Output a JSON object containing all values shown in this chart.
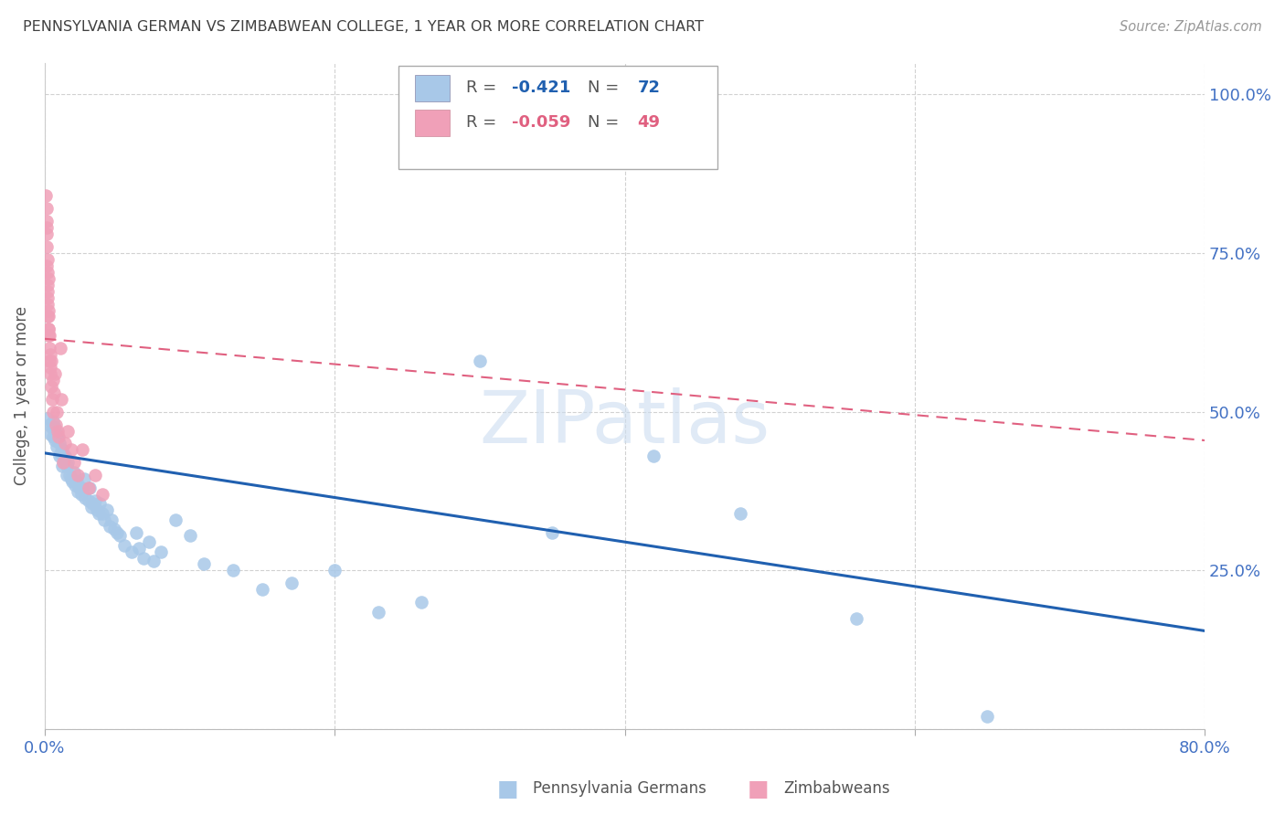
{
  "title": "PENNSYLVANIA GERMAN VS ZIMBABWEAN COLLEGE, 1 YEAR OR MORE CORRELATION CHART",
  "source": "Source: ZipAtlas.com",
  "ylabel": "College, 1 year or more",
  "watermark": "ZIPatlas",
  "legend_blue_r_val": "-0.421",
  "legend_blue_n_val": "72",
  "legend_pink_r_val": "-0.059",
  "legend_pink_n_val": "49",
  "legend_blue_label": "Pennsylvania Germans",
  "legend_pink_label": "Zimbabweans",
  "blue_color": "#a8c8e8",
  "blue_line_color": "#2060b0",
  "pink_color": "#f0a0b8",
  "pink_line_color": "#e06080",
  "axis_label_color": "#4472c4",
  "title_color": "#404040",
  "grid_color": "#cccccc",
  "background_color": "#ffffff",
  "blue_scatter_x": [
    0.002,
    0.003,
    0.004,
    0.005,
    0.006,
    0.006,
    0.007,
    0.007,
    0.008,
    0.008,
    0.009,
    0.01,
    0.01,
    0.011,
    0.012,
    0.012,
    0.013,
    0.014,
    0.015,
    0.015,
    0.016,
    0.017,
    0.018,
    0.019,
    0.02,
    0.021,
    0.022,
    0.023,
    0.024,
    0.025,
    0.026,
    0.027,
    0.028,
    0.03,
    0.031,
    0.032,
    0.033,
    0.035,
    0.036,
    0.037,
    0.038,
    0.04,
    0.041,
    0.043,
    0.045,
    0.046,
    0.048,
    0.05,
    0.052,
    0.055,
    0.06,
    0.063,
    0.065,
    0.068,
    0.072,
    0.075,
    0.08,
    0.09,
    0.1,
    0.11,
    0.13,
    0.15,
    0.17,
    0.2,
    0.23,
    0.26,
    0.3,
    0.35,
    0.42,
    0.48,
    0.56,
    0.65
  ],
  "blue_scatter_y": [
    0.49,
    0.48,
    0.465,
    0.475,
    0.46,
    0.485,
    0.455,
    0.475,
    0.445,
    0.465,
    0.46,
    0.43,
    0.45,
    0.435,
    0.415,
    0.44,
    0.425,
    0.43,
    0.4,
    0.415,
    0.42,
    0.4,
    0.395,
    0.39,
    0.405,
    0.385,
    0.39,
    0.375,
    0.38,
    0.37,
    0.38,
    0.395,
    0.365,
    0.36,
    0.38,
    0.35,
    0.355,
    0.36,
    0.345,
    0.34,
    0.355,
    0.34,
    0.33,
    0.345,
    0.32,
    0.33,
    0.315,
    0.31,
    0.305,
    0.29,
    0.28,
    0.31,
    0.285,
    0.27,
    0.295,
    0.265,
    0.28,
    0.33,
    0.305,
    0.26,
    0.25,
    0.22,
    0.23,
    0.25,
    0.185,
    0.2,
    0.58,
    0.31,
    0.43,
    0.34,
    0.175,
    0.02
  ],
  "pink_scatter_x": [
    0.0008,
    0.001,
    0.0011,
    0.0012,
    0.0013,
    0.0014,
    0.0015,
    0.0016,
    0.0017,
    0.0018,
    0.0019,
    0.002,
    0.0021,
    0.0022,
    0.0023,
    0.0024,
    0.0025,
    0.0026,
    0.0027,
    0.0028,
    0.003,
    0.0032,
    0.0034,
    0.0036,
    0.0038,
    0.004,
    0.0043,
    0.0046,
    0.005,
    0.0054,
    0.0058,
    0.0062,
    0.0068,
    0.0074,
    0.008,
    0.0088,
    0.0095,
    0.0105,
    0.0115,
    0.0125,
    0.014,
    0.016,
    0.018,
    0.02,
    0.023,
    0.026,
    0.03,
    0.035,
    0.04
  ],
  "pink_scatter_y": [
    0.84,
    0.8,
    0.82,
    0.78,
    0.76,
    0.73,
    0.79,
    0.68,
    0.72,
    0.7,
    0.74,
    0.65,
    0.67,
    0.69,
    0.63,
    0.71,
    0.65,
    0.62,
    0.66,
    0.63,
    0.6,
    0.58,
    0.62,
    0.57,
    0.59,
    0.56,
    0.54,
    0.58,
    0.52,
    0.55,
    0.5,
    0.53,
    0.56,
    0.48,
    0.5,
    0.47,
    0.46,
    0.6,
    0.52,
    0.42,
    0.45,
    0.47,
    0.44,
    0.42,
    0.4,
    0.44,
    0.38,
    0.4,
    0.37
  ],
  "xlim": [
    0.0,
    0.8
  ],
  "ylim": [
    0.0,
    1.05
  ],
  "yticks": [
    0.0,
    0.25,
    0.5,
    0.75,
    1.0
  ],
  "ytick_labels": [
    "",
    "25.0%",
    "50.0%",
    "75.0%",
    "100.0%"
  ],
  "xticks": [
    0.0,
    0.2,
    0.4,
    0.6,
    0.8
  ],
  "xtick_labels": [
    "0.0%",
    "",
    "",
    "",
    "80.0%"
  ],
  "blue_trend_x": [
    0.0,
    0.8
  ],
  "blue_trend_y": [
    0.435,
    0.155
  ],
  "pink_trend_x": [
    0.0,
    0.8
  ],
  "pink_trend_y": [
    0.615,
    0.455
  ]
}
